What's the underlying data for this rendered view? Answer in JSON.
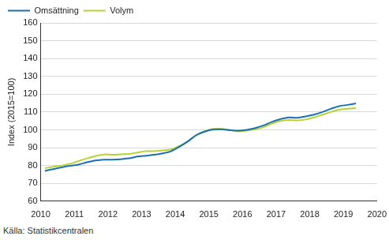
{
  "chart_data": {
    "type": "line",
    "y_label": "Index (2015=100)",
    "source": "Källa: Statistikcentralen",
    "x": [
      2010.125,
      2010.375,
      2010.625,
      2010.875,
      2011.125,
      2011.375,
      2011.625,
      2011.875,
      2012.125,
      2012.375,
      2012.625,
      2012.875,
      2013.125,
      2013.375,
      2013.625,
      2013.875,
      2014.125,
      2014.375,
      2014.625,
      2014.875,
      2015.125,
      2015.375,
      2015.625,
      2015.875,
      2016.125,
      2016.375,
      2016.625,
      2016.875,
      2017.125,
      2017.375,
      2017.625,
      2017.875,
      2018.125,
      2018.375,
      2018.625,
      2018.875,
      2019.125,
      2019.375
    ],
    "series": [
      {
        "name": "Omsättning",
        "color": "#1a6fb0",
        "values": [
          77,
          78,
          79,
          79.8,
          80.5,
          81.8,
          82.8,
          83.3,
          83.3,
          83.5,
          84,
          85,
          85.5,
          86,
          86.8,
          88,
          90.5,
          93.5,
          97,
          99,
          100.2,
          100.3,
          99.8,
          99.5,
          100,
          101,
          102.5,
          104.5,
          106,
          107,
          106.8,
          107.5,
          108.5,
          110,
          111.8,
          113.3,
          114,
          114.8
        ]
      },
      {
        "name": "Volym",
        "color": "#b5d334",
        "values": [
          78.5,
          79.3,
          80,
          81,
          82.5,
          84,
          85.3,
          86.2,
          86,
          86.3,
          86.5,
          87.3,
          88,
          88,
          88.5,
          89,
          91,
          93.5,
          97,
          99.2,
          100.5,
          100.5,
          100,
          99.2,
          99.5,
          100.3,
          101.5,
          103.5,
          105,
          105.5,
          105.3,
          105.8,
          107,
          108.5,
          110,
          111.3,
          111.8,
          112.2
        ]
      }
    ],
    "xlim": [
      2010,
      2020
    ],
    "xticks": [
      2010,
      2011,
      2012,
      2013,
      2014,
      2015,
      2016,
      2017,
      2018,
      2019,
      2020
    ],
    "ylim": [
      60,
      160
    ],
    "yticks": [
      60,
      70,
      80,
      90,
      100,
      110,
      120,
      130,
      140,
      150,
      160
    ],
    "grid": true,
    "legend": "upper left"
  }
}
